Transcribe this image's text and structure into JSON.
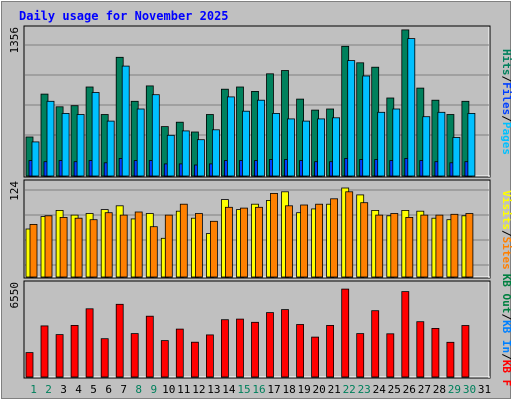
{
  "title": "Daily usage for November 2025",
  "colors": {
    "background": "#c0c0c0",
    "plot_background": "#c0c0c0",
    "title": "#0000ff",
    "hits": "#00805c",
    "files": "#0040ff",
    "pages": "#00c0ff",
    "visits": "#ffff00",
    "sites": "#ff8000",
    "kbin": "#0080ff",
    "kbout": "#008040",
    "kbf": "#ff0000",
    "weekend_day": "#00805c",
    "weekday_day": "#000000"
  },
  "right_labels": {
    "top": [
      {
        "text": "Hits",
        "color": "#00805c"
      },
      {
        "text": "/",
        "color": "#000000"
      },
      {
        "text": "Files",
        "color": "#0040ff"
      },
      {
        "text": "/",
        "color": "#000000"
      },
      {
        "text": "Pages",
        "color": "#00c0ff"
      }
    ],
    "middle": [
      {
        "text": "Visits",
        "color": "#ffff00"
      },
      {
        "text": "/",
        "color": "#000000"
      },
      {
        "text": "Sites",
        "color": "#ff8000"
      }
    ],
    "bottom": [
      {
        "text": "KB Out",
        "color": "#008040"
      },
      {
        "text": "/",
        "color": "#000000"
      },
      {
        "text": "KB In",
        "color": "#0080ff"
      },
      {
        "text": "/",
        "color": "#000000"
      },
      {
        "text": "KB F",
        "color": "#ff0000"
      }
    ]
  },
  "chart_data": [
    {
      "type": "bar",
      "panel": "hits-files-pages",
      "y_max_label": "1356",
      "ylim": [
        0,
        1356
      ],
      "grid": true,
      "categories": [
        "1",
        "2",
        "3",
        "4",
        "5",
        "6",
        "7",
        "8",
        "9",
        "10",
        "11",
        "12",
        "13",
        "14",
        "15",
        "16",
        "17",
        "18",
        "19",
        "20",
        "21",
        "22",
        "23",
        "24",
        "25",
        "26",
        "27",
        "28",
        "29",
        "30",
        "31"
      ],
      "weekend_days": [
        "1",
        "2",
        "8",
        "9",
        "15",
        "16",
        "22",
        "23",
        "29",
        "30"
      ],
      "series": [
        {
          "name": "Hits",
          "values": [
            355,
            745,
            630,
            640,
            810,
            560,
            1080,
            680,
            820,
            450,
            490,
            400,
            560,
            790,
            810,
            770,
            930,
            960,
            700,
            600,
            610,
            1180,
            1030,
            990,
            710,
            1330,
            800,
            690,
            560,
            680,
            0
          ]
        },
        {
          "name": "Files",
          "values": [
            140,
            130,
            140,
            130,
            140,
            120,
            160,
            140,
            140,
            110,
            110,
            100,
            110,
            140,
            140,
            140,
            150,
            150,
            140,
            130,
            130,
            160,
            150,
            150,
            140,
            160,
            140,
            130,
            120,
            130,
            0
          ]
        },
        {
          "name": "Pages",
          "values": [
            310,
            680,
            570,
            560,
            760,
            500,
            1000,
            610,
            740,
            370,
            410,
            330,
            420,
            720,
            590,
            690,
            570,
            520,
            500,
            520,
            530,
            1050,
            910,
            580,
            610,
            1250,
            540,
            580,
            350,
            570,
            0
          ]
        }
      ]
    },
    {
      "type": "bar",
      "panel": "visits-sites",
      "y_max_label": "124",
      "ylim": [
        0,
        124
      ],
      "grid": true,
      "categories": [
        "1",
        "2",
        "3",
        "4",
        "5",
        "6",
        "7",
        "8",
        "9",
        "10",
        "11",
        "12",
        "13",
        "14",
        "15",
        "16",
        "17",
        "18",
        "19",
        "20",
        "21",
        "22",
        "23",
        "24",
        "25",
        "26",
        "27",
        "28",
        "29",
        "30",
        "31"
      ],
      "series": [
        {
          "name": "Visits",
          "values": [
            62,
            78,
            86,
            80,
            82,
            87,
            92,
            75,
            82,
            50,
            85,
            76,
            56,
            100,
            87,
            94,
            99,
            110,
            83,
            88,
            94,
            115,
            106,
            86,
            79,
            86,
            85,
            76,
            74,
            79,
            0
          ]
        },
        {
          "name": "Sites",
          "values": [
            68,
            79,
            77,
            76,
            74,
            83,
            80,
            84,
            65,
            80,
            94,
            82,
            72,
            90,
            89,
            90,
            108,
            92,
            93,
            94,
            101,
            110,
            96,
            80,
            82,
            77,
            80,
            80,
            81,
            82,
            0
          ]
        }
      ]
    },
    {
      "type": "bar",
      "panel": "kbf-kbin-kbout",
      "y_max_label": "6550",
      "ylim": [
        0,
        6550
      ],
      "grid": false,
      "categories": [
        "1",
        "2",
        "3",
        "4",
        "5",
        "6",
        "7",
        "8",
        "9",
        "10",
        "11",
        "12",
        "13",
        "14",
        "15",
        "16",
        "17",
        "18",
        "19",
        "20",
        "21",
        "22",
        "23",
        "24",
        "25",
        "26",
        "27",
        "28",
        "29",
        "30",
        "31"
      ],
      "series": [
        {
          "name": "KB F",
          "values": [
            1680,
            3520,
            2920,
            3560,
            4700,
            2640,
            5010,
            2990,
            4190,
            2510,
            3300,
            2400,
            2900,
            3950,
            3990,
            3770,
            4440,
            4650,
            3620,
            2750,
            3560,
            6060,
            2990,
            4570,
            2980,
            5890,
            3810,
            3350,
            2390,
            3550,
            0
          ]
        },
        {
          "name": "KB In",
          "values": [
            0,
            0,
            0,
            0,
            0,
            0,
            0,
            0,
            0,
            0,
            0,
            0,
            0,
            0,
            0,
            0,
            0,
            0,
            0,
            0,
            0,
            0,
            0,
            0,
            0,
            0,
            0,
            0,
            0,
            0,
            0
          ]
        },
        {
          "name": "KB Out",
          "values": [
            0,
            0,
            0,
            0,
            0,
            0,
            0,
            0,
            0,
            0,
            0,
            0,
            0,
            0,
            0,
            0,
            0,
            0,
            0,
            0,
            0,
            0,
            0,
            0,
            0,
            0,
            0,
            0,
            0,
            0,
            0
          ]
        }
      ]
    }
  ]
}
